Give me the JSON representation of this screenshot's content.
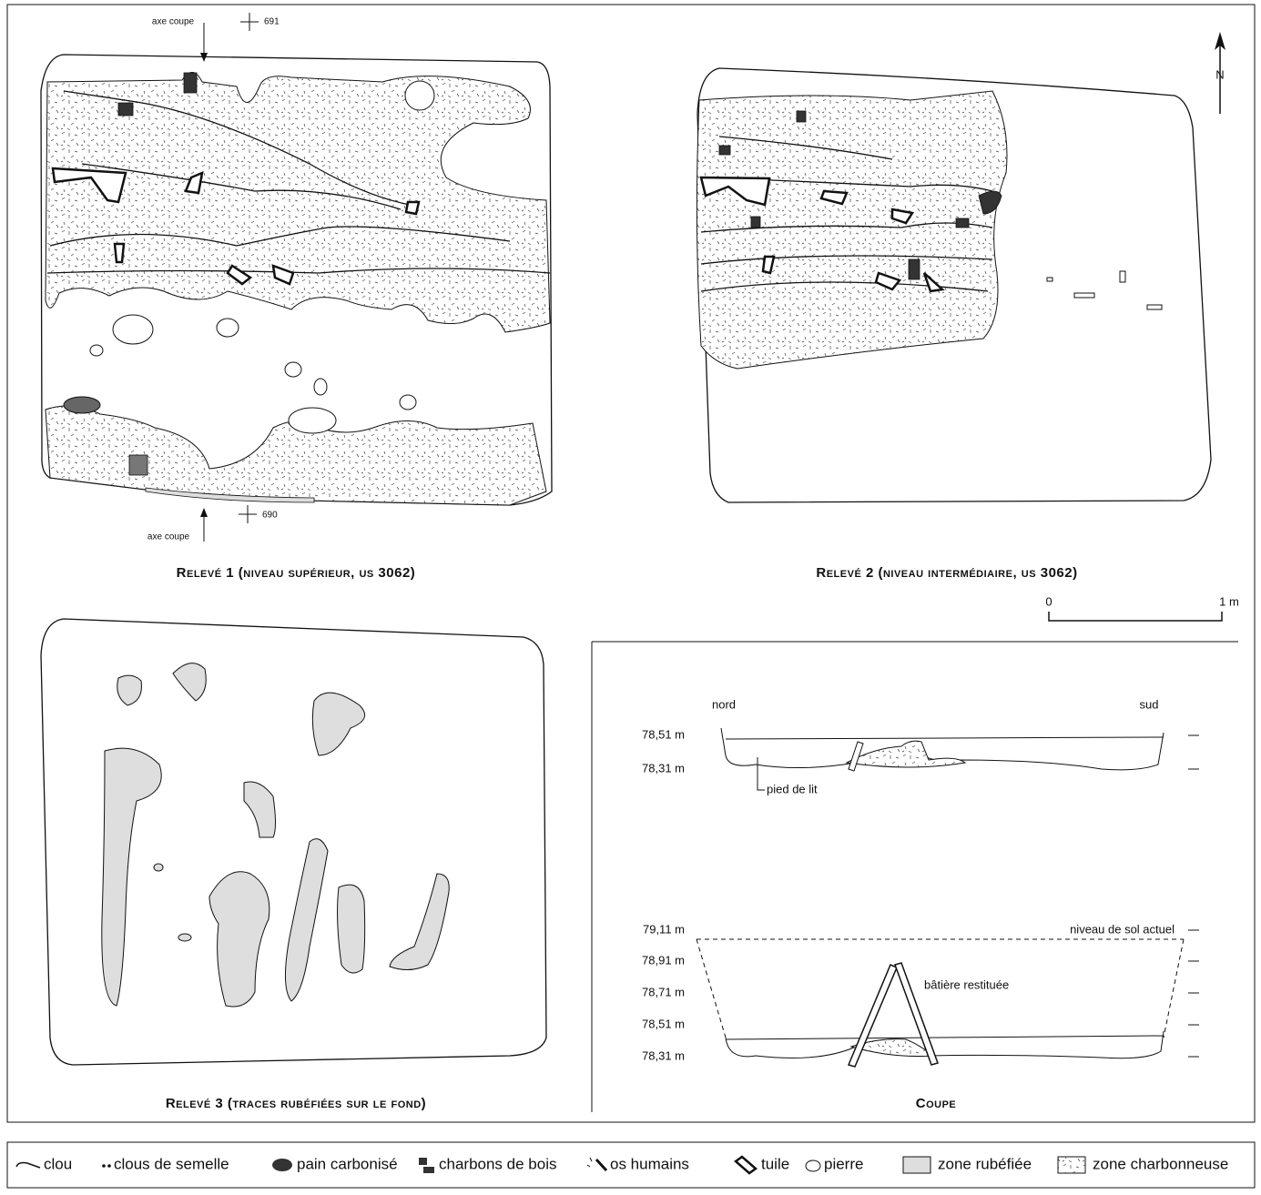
{
  "plans": [
    {
      "caption": "Relevé 1 (niveau supérieur, us 3062)",
      "axis_top": "axe coupe",
      "grid_top": "691",
      "axis_bottom": "axe coupe",
      "grid_bottom": "690"
    },
    {
      "caption": "Relevé 2 (niveau intermédiaire, us 3062)",
      "north": "N",
      "scale_start": "0",
      "scale_end": "1 m"
    },
    {
      "caption": "Relevé 3 (traces rubéfiées sur le fond)"
    }
  ],
  "section": {
    "caption": "Coupe",
    "upper": {
      "left": "nord",
      "right": "sud",
      "levels": [
        "78,51 m",
        "78,31 m"
      ],
      "note": "pied de lit"
    },
    "lower": {
      "levels": [
        "79,11 m",
        "78,91 m",
        "78,71 m",
        "78,51 m",
        "78,31 m"
      ],
      "ground": "niveau de sol actuel",
      "note": "bâtière restituée"
    }
  },
  "legend": [
    "clou",
    "clous de semelle",
    "pain carbonisé",
    "charbons de bois",
    "os humains",
    "tuile",
    "pierre",
    "zone rubéfiée",
    "zone charbonneuse"
  ]
}
